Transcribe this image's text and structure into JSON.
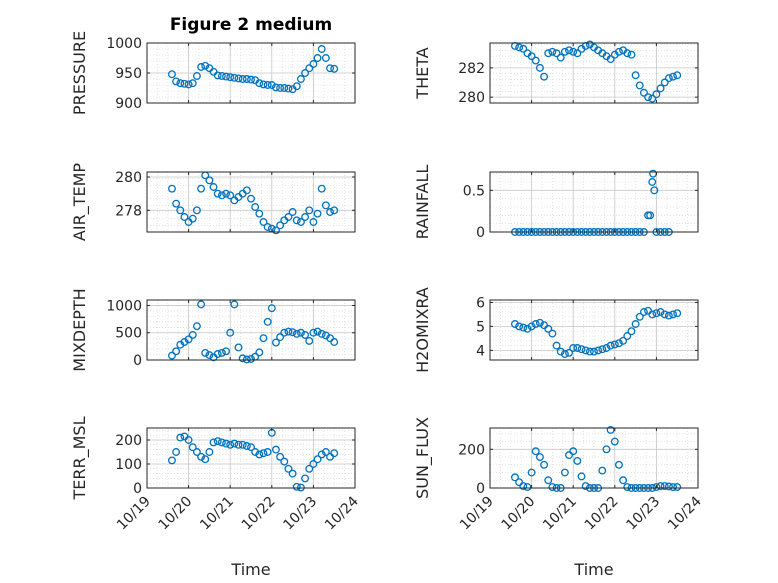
{
  "figure_title": "Figure 2 medium",
  "marker_color": "#0072BD",
  "xaxis": {
    "label": "Time",
    "ticks": [
      19,
      20,
      21,
      22,
      23,
      24
    ],
    "tick_labels": [
      "10/19",
      "10/20",
      "10/21",
      "10/22",
      "10/23",
      "10/24"
    ],
    "range": [
      19,
      24
    ]
  },
  "chart_data": [
    {
      "type": "scatter",
      "name": "pressure",
      "ylabel": "PRESSURE",
      "ylim": [
        900,
        1000
      ],
      "yticks": [
        900,
        950,
        1000
      ],
      "ytick_labels": [
        "900",
        "950",
        "1000"
      ],
      "x": [
        19.6,
        19.7,
        19.8,
        19.9,
        20.0,
        20.1,
        20.2,
        20.3,
        20.4,
        20.5,
        20.6,
        20.7,
        20.8,
        20.9,
        21.0,
        21.1,
        21.2,
        21.3,
        21.4,
        21.5,
        21.6,
        21.7,
        21.8,
        21.9,
        22.0,
        22.1,
        22.2,
        22.3,
        22.4,
        22.5,
        22.6,
        22.7,
        22.8,
        22.9,
        23.0,
        23.1,
        23.2,
        23.3,
        23.4,
        23.5
      ],
      "y": [
        948,
        936,
        933,
        932,
        931,
        933,
        945,
        960,
        962,
        958,
        952,
        946,
        945,
        944,
        943,
        942,
        941,
        940,
        940,
        939,
        938,
        933,
        931,
        930,
        930,
        926,
        925,
        925,
        924,
        923,
        928,
        940,
        950,
        958,
        965,
        975,
        990,
        975,
        958,
        957
      ]
    },
    {
      "type": "scatter",
      "name": "theta",
      "ylabel": "THETA",
      "ylim": [
        279.6,
        283.7
      ],
      "yticks": [
        280,
        282
      ],
      "ytick_labels": [
        "280",
        "282"
      ],
      "x": [
        19.6,
        19.7,
        19.8,
        19.9,
        20.0,
        20.1,
        20.2,
        20.3,
        20.4,
        20.5,
        20.6,
        20.7,
        20.8,
        20.9,
        21.0,
        21.1,
        21.2,
        21.3,
        21.4,
        21.5,
        21.6,
        21.7,
        21.8,
        21.9,
        22.0,
        22.1,
        22.2,
        22.3,
        22.4,
        22.5,
        22.6,
        22.7,
        22.8,
        22.9,
        23.0,
        23.1,
        23.2,
        23.3,
        23.4,
        23.5
      ],
      "y": [
        283.5,
        283.4,
        283.3,
        283.0,
        282.8,
        282.5,
        282.0,
        281.4,
        283.0,
        283.1,
        283.0,
        282.7,
        283.1,
        283.2,
        283.1,
        283.0,
        283.3,
        283.5,
        283.6,
        283.4,
        283.2,
        283.0,
        282.8,
        282.6,
        282.9,
        283.1,
        283.2,
        283.0,
        282.9,
        281.5,
        280.8,
        280.3,
        280.0,
        279.9,
        280.2,
        280.6,
        281.0,
        281.3,
        281.4,
        281.5
      ]
    },
    {
      "type": "scatter",
      "name": "air_temp",
      "ylabel": "AIR_TEMP",
      "ylim": [
        276.7,
        280.3
      ],
      "yticks": [
        278,
        280
      ],
      "ytick_labels": [
        "278",
        "280"
      ],
      "x": [
        19.6,
        19.7,
        19.8,
        19.9,
        20.0,
        20.1,
        20.2,
        20.3,
        20.4,
        20.5,
        20.6,
        20.7,
        20.8,
        20.9,
        21.0,
        21.1,
        21.2,
        21.3,
        21.4,
        21.5,
        21.6,
        21.7,
        21.8,
        21.9,
        22.0,
        22.1,
        22.2,
        22.3,
        22.4,
        22.5,
        22.6,
        22.7,
        22.8,
        22.9,
        23.0,
        23.1,
        23.2,
        23.3,
        23.4,
        23.5
      ],
      "y": [
        279.3,
        278.4,
        278.0,
        277.6,
        277.3,
        277.5,
        278.0,
        279.3,
        280.1,
        279.8,
        279.4,
        279.0,
        278.9,
        279.0,
        278.9,
        278.6,
        278.8,
        279.0,
        279.2,
        278.7,
        278.2,
        277.8,
        277.3,
        277.0,
        276.9,
        276.8,
        277.1,
        277.4,
        277.6,
        277.9,
        277.4,
        277.3,
        277.6,
        278.0,
        277.3,
        277.8,
        279.3,
        278.3,
        277.9,
        278.0
      ]
    },
    {
      "type": "scatter",
      "name": "rainfall",
      "ylabel": "RAINFALL",
      "ylim": [
        0,
        0.72
      ],
      "yticks": [
        0,
        0.5
      ],
      "ytick_labels": [
        "0",
        "0.5"
      ],
      "x": [
        19.6,
        19.7,
        19.8,
        19.9,
        20.0,
        20.1,
        20.2,
        20.3,
        20.4,
        20.5,
        20.6,
        20.7,
        20.8,
        20.9,
        21.0,
        21.1,
        21.2,
        21.3,
        21.4,
        21.5,
        21.6,
        21.7,
        21.8,
        21.9,
        22.0,
        22.1,
        22.2,
        22.3,
        22.4,
        22.5,
        22.6,
        22.7,
        22.8,
        22.85,
        22.9,
        22.92,
        22.95,
        23.0,
        23.1,
        23.2,
        23.3
      ],
      "y": [
        0,
        0,
        0,
        0,
        0,
        0,
        0,
        0,
        0,
        0,
        0,
        0,
        0,
        0,
        0,
        0,
        0,
        0,
        0,
        0,
        0,
        0,
        0,
        0,
        0,
        0,
        0,
        0,
        0,
        0,
        0,
        0,
        0.2,
        0.2,
        0.6,
        0.7,
        0.5,
        0,
        0,
        0,
        0
      ]
    },
    {
      "type": "scatter",
      "name": "mixdepth",
      "ylabel": "MIXDEPTH",
      "ylim": [
        0,
        1100
      ],
      "yticks": [
        0,
        500,
        1000
      ],
      "ytick_labels": [
        "0",
        "500",
        "1000"
      ],
      "x": [
        19.6,
        19.7,
        19.8,
        19.9,
        20.0,
        20.1,
        20.2,
        20.3,
        20.4,
        20.5,
        20.6,
        20.7,
        20.8,
        20.9,
        21.0,
        21.1,
        21.2,
        21.3,
        21.4,
        21.5,
        21.6,
        21.7,
        21.8,
        21.9,
        22.0,
        22.1,
        22.2,
        22.3,
        22.4,
        22.5,
        22.6,
        22.7,
        22.8,
        22.9,
        23.0,
        23.1,
        23.2,
        23.3,
        23.4,
        23.5
      ],
      "y": [
        80,
        160,
        280,
        330,
        380,
        460,
        620,
        1020,
        130,
        90,
        50,
        110,
        130,
        160,
        500,
        1020,
        230,
        30,
        10,
        20,
        60,
        140,
        400,
        700,
        950,
        320,
        420,
        500,
        520,
        510,
        480,
        500,
        460,
        350,
        500,
        520,
        480,
        450,
        400,
        330
      ]
    },
    {
      "type": "scatter",
      "name": "h2omixra",
      "ylabel": "H2OMIXRA",
      "ylim": [
        3.6,
        6.1
      ],
      "yticks": [
        4,
        5,
        6
      ],
      "ytick_labels": [
        "4",
        "5",
        "6"
      ],
      "x": [
        19.6,
        19.7,
        19.8,
        19.9,
        20.0,
        20.1,
        20.2,
        20.3,
        20.4,
        20.5,
        20.6,
        20.7,
        20.8,
        20.9,
        21.0,
        21.1,
        21.2,
        21.3,
        21.4,
        21.5,
        21.6,
        21.7,
        21.8,
        21.9,
        22.0,
        22.1,
        22.2,
        22.3,
        22.4,
        22.5,
        22.6,
        22.7,
        22.8,
        22.9,
        23.0,
        23.1,
        23.2,
        23.3,
        23.4,
        23.5
      ],
      "y": [
        5.1,
        5.0,
        4.95,
        4.9,
        5.0,
        5.1,
        5.15,
        5.05,
        4.9,
        4.7,
        4.2,
        3.95,
        3.85,
        3.9,
        4.1,
        4.1,
        4.05,
        4.0,
        3.95,
        3.95,
        4.0,
        4.05,
        4.1,
        4.2,
        4.25,
        4.3,
        4.4,
        4.6,
        4.8,
        5.1,
        5.4,
        5.6,
        5.65,
        5.5,
        5.55,
        5.6,
        5.5,
        5.45,
        5.5,
        5.55
      ]
    },
    {
      "type": "scatter",
      "name": "terr_msl",
      "ylabel": "TERR_MSL",
      "ylim": [
        0,
        250
      ],
      "yticks": [
        0,
        100,
        200
      ],
      "ytick_labels": [
        "0",
        "100",
        "200"
      ],
      "x": [
        19.6,
        19.7,
        19.8,
        19.9,
        20.0,
        20.1,
        20.2,
        20.3,
        20.4,
        20.5,
        20.6,
        20.7,
        20.8,
        20.9,
        21.0,
        21.1,
        21.2,
        21.3,
        21.4,
        21.5,
        21.6,
        21.7,
        21.8,
        21.9,
        22.0,
        22.1,
        22.2,
        22.3,
        22.4,
        22.5,
        22.6,
        22.7,
        22.8,
        22.9,
        23.0,
        23.1,
        23.2,
        23.3,
        23.4,
        23.5
      ],
      "y": [
        115,
        150,
        210,
        215,
        200,
        170,
        150,
        130,
        120,
        150,
        190,
        195,
        190,
        185,
        180,
        185,
        180,
        180,
        175,
        170,
        150,
        140,
        145,
        150,
        230,
        160,
        130,
        110,
        80,
        60,
        5,
        2,
        40,
        80,
        100,
        120,
        140,
        150,
        130,
        145
      ]
    },
    {
      "type": "scatter",
      "name": "sun_flux",
      "ylabel": "SUN_FLUX",
      "ylim": [
        0,
        310
      ],
      "yticks": [
        0,
        200
      ],
      "ytick_labels": [
        "0",
        "200"
      ],
      "x": [
        19.6,
        19.7,
        19.8,
        19.9,
        20.0,
        20.1,
        20.2,
        20.3,
        20.4,
        20.5,
        20.6,
        20.7,
        20.8,
        20.9,
        21.0,
        21.1,
        21.2,
        21.3,
        21.4,
        21.5,
        21.6,
        21.7,
        21.8,
        21.9,
        22.0,
        22.1,
        22.2,
        22.3,
        22.4,
        22.5,
        22.6,
        22.7,
        22.8,
        22.9,
        23.0,
        23.1,
        23.2,
        23.3,
        23.4,
        23.5
      ],
      "y": [
        55,
        30,
        10,
        5,
        80,
        190,
        160,
        120,
        40,
        5,
        0,
        0,
        80,
        170,
        190,
        140,
        60,
        10,
        0,
        0,
        0,
        90,
        200,
        300,
        240,
        120,
        40,
        5,
        0,
        0,
        0,
        0,
        0,
        0,
        5,
        10,
        10,
        8,
        5,
        5
      ]
    }
  ]
}
